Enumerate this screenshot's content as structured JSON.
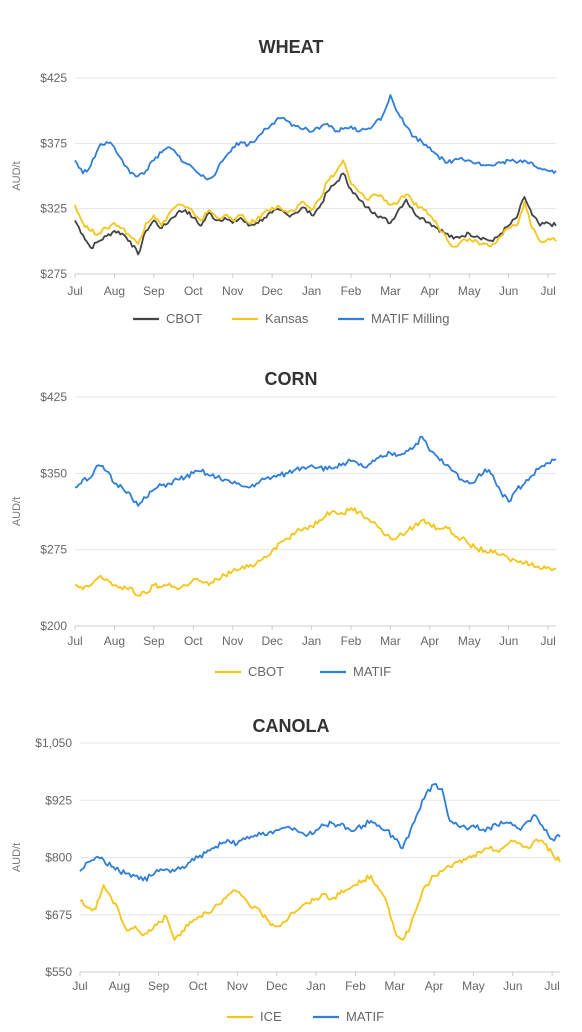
{
  "chart_data": [
    {
      "type": "line",
      "title": "WHEAT",
      "ylabel": "AUD/t",
      "ylim": [
        275,
        425
      ],
      "yticks": [
        "$425",
        "$375",
        "$325",
        "$275"
      ],
      "ytick_values": [
        425,
        375,
        325,
        275
      ],
      "x_tick_labels": [
        "Jul",
        "Aug",
        "Sep",
        "Oct",
        "Nov",
        "Dec",
        "Jan",
        "Feb",
        "Mar",
        "Apr",
        "May",
        "Jun",
        "Jul"
      ],
      "legend_position": "bottom",
      "grid": true,
      "x": [
        0,
        0.2,
        0.4,
        0.6,
        0.8,
        1.0,
        1.2,
        1.4,
        1.6,
        1.8,
        2.0,
        2.2,
        2.4,
        2.6,
        2.8,
        3.0,
        3.2,
        3.4,
        3.6,
        3.8,
        4.0,
        4.2,
        4.4,
        4.6,
        4.8,
        5.0,
        5.2,
        5.4,
        5.6,
        5.8,
        6.0,
        6.2,
        6.4,
        6.6,
        6.8,
        7.0,
        7.2,
        7.4,
        7.6,
        7.8,
        8.0,
        8.2,
        8.4,
        8.6,
        8.8,
        9.0,
        9.2,
        9.4,
        9.6,
        9.8,
        10.0,
        10.2,
        10.4,
        10.6,
        10.8,
        11.0,
        11.2,
        11.4,
        11.6,
        11.8,
        12.0,
        12.2
      ],
      "series": [
        {
          "name": "CBOT",
          "color": "#444444",
          "values": [
            316,
            305,
            295,
            300,
            304,
            308,
            306,
            300,
            290,
            308,
            316,
            310,
            316,
            322,
            324,
            318,
            312,
            322,
            316,
            318,
            314,
            318,
            312,
            314,
            318,
            322,
            324,
            320,
            322,
            326,
            320,
            326,
            338,
            344,
            352,
            340,
            332,
            326,
            322,
            318,
            314,
            324,
            332,
            322,
            318,
            314,
            310,
            306,
            302,
            304,
            306,
            304,
            302,
            300,
            306,
            312,
            318,
            334,
            320,
            312,
            314,
            312
          ]
        },
        {
          "name": "Kansas",
          "color": "#F5C518",
          "values": [
            328,
            314,
            308,
            306,
            310,
            314,
            310,
            304,
            298,
            314,
            320,
            312,
            322,
            328,
            326,
            322,
            316,
            324,
            318,
            320,
            316,
            320,
            314,
            316,
            322,
            326,
            326,
            322,
            324,
            330,
            324,
            332,
            346,
            352,
            362,
            344,
            338,
            332,
            336,
            334,
            328,
            330,
            336,
            328,
            326,
            320,
            312,
            304,
            296,
            300,
            302,
            300,
            298,
            298,
            304,
            310,
            312,
            330,
            310,
            300,
            302,
            300
          ]
        },
        {
          "name": "MATIF Milling",
          "color": "#2F7ED8",
          "values": [
            362,
            352,
            358,
            372,
            376,
            372,
            362,
            352,
            350,
            354,
            362,
            368,
            372,
            366,
            360,
            356,
            350,
            348,
            354,
            364,
            372,
            376,
            374,
            378,
            386,
            390,
            394,
            392,
            388,
            386,
            384,
            386,
            390,
            384,
            386,
            388,
            384,
            386,
            390,
            396,
            412,
            398,
            388,
            380,
            376,
            372,
            366,
            360,
            362,
            364,
            362,
            360,
            358,
            358,
            360,
            362,
            360,
            362,
            360,
            356,
            354,
            354
          ]
        }
      ]
    },
    {
      "type": "line",
      "title": "CORN",
      "ylabel": "AUD/t",
      "ylim": [
        200,
        425
      ],
      "yticks": [
        "$425",
        "$350",
        "$275",
        "$200"
      ],
      "ytick_values": [
        425,
        350,
        275,
        200
      ],
      "x_tick_labels": [
        "Jul",
        "Aug",
        "Sep",
        "Oct",
        "Nov",
        "Dec",
        "Jan",
        "Feb",
        "Mar",
        "Apr",
        "May",
        "Jun",
        "Jul"
      ],
      "legend_position": "bottom",
      "grid": true,
      "x": [
        0,
        0.2,
        0.4,
        0.6,
        0.8,
        1.0,
        1.2,
        1.4,
        1.6,
        1.8,
        2.0,
        2.2,
        2.4,
        2.6,
        2.8,
        3.0,
        3.2,
        3.4,
        3.6,
        3.8,
        4.0,
        4.2,
        4.4,
        4.6,
        4.8,
        5.0,
        5.2,
        5.4,
        5.6,
        5.8,
        6.0,
        6.2,
        6.4,
        6.6,
        6.8,
        7.0,
        7.2,
        7.4,
        7.6,
        7.8,
        8.0,
        8.2,
        8.4,
        8.6,
        8.8,
        9.0,
        9.2,
        9.4,
        9.6,
        9.8,
        10.0,
        10.2,
        10.4,
        10.6,
        10.8,
        11.0,
        11.2,
        11.4,
        11.6,
        11.8,
        12.0,
        12.2
      ],
      "series": [
        {
          "name": "CBOT",
          "color": "#F5C518",
          "values": [
            240,
            236,
            240,
            248,
            246,
            240,
            236,
            238,
            230,
            232,
            240,
            238,
            242,
            236,
            240,
            246,
            244,
            240,
            246,
            250,
            254,
            256,
            258,
            262,
            268,
            274,
            282,
            286,
            292,
            296,
            298,
            304,
            312,
            312,
            310,
            316,
            312,
            306,
            302,
            292,
            286,
            288,
            292,
            298,
            304,
            300,
            296,
            298,
            290,
            286,
            280,
            276,
            274,
            272,
            270,
            266,
            264,
            262,
            262,
            256,
            258,
            256
          ]
        },
        {
          "name": "MATIF",
          "color": "#2F7ED8",
          "values": [
            336,
            344,
            346,
            358,
            352,
            340,
            336,
            330,
            318,
            326,
            334,
            338,
            340,
            344,
            346,
            350,
            352,
            348,
            346,
            344,
            340,
            338,
            336,
            340,
            344,
            346,
            348,
            350,
            354,
            356,
            358,
            356,
            354,
            356,
            360,
            362,
            358,
            356,
            362,
            366,
            370,
            368,
            372,
            376,
            386,
            372,
            366,
            358,
            352,
            344,
            340,
            346,
            354,
            348,
            332,
            322,
            334,
            340,
            348,
            356,
            360,
            364
          ]
        }
      ]
    },
    {
      "type": "line",
      "title": "CANOLA",
      "ylabel": "AUD/t",
      "ylim": [
        550,
        1050
      ],
      "yticks": [
        "$1,050",
        "$925",
        "$800",
        "$675",
        "$550"
      ],
      "ytick_values": [
        1050,
        925,
        800,
        675,
        550
      ],
      "x_tick_labels": [
        "Jul",
        "Aug",
        "Sep",
        "Oct",
        "Nov",
        "Dec",
        "Jan",
        "Feb",
        "Mar",
        "Apr",
        "May",
        "Jun",
        "Jul"
      ],
      "legend_position": "bottom",
      "grid": true,
      "x": [
        0,
        0.2,
        0.4,
        0.6,
        0.8,
        1.0,
        1.2,
        1.4,
        1.6,
        1.8,
        2.0,
        2.2,
        2.4,
        2.6,
        2.8,
        3.0,
        3.2,
        3.4,
        3.6,
        3.8,
        4.0,
        4.2,
        4.4,
        4.6,
        4.8,
        5.0,
        5.2,
        5.4,
        5.6,
        5.8,
        6.0,
        6.2,
        6.4,
        6.6,
        6.8,
        7.0,
        7.2,
        7.4,
        7.6,
        7.8,
        8.0,
        8.2,
        8.4,
        8.6,
        8.8,
        9.0,
        9.2,
        9.4,
        9.6,
        9.8,
        10.0,
        10.2,
        10.4,
        10.6,
        10.8,
        11.0,
        11.2,
        11.4,
        11.6,
        11.8,
        12.0,
        12.2
      ],
      "series": [
        {
          "name": "ICE",
          "color": "#F5C518",
          "values": [
            705,
            690,
            688,
            740,
            710,
            680,
            640,
            650,
            630,
            640,
            660,
            670,
            620,
            640,
            660,
            670,
            680,
            690,
            700,
            720,
            725,
            710,
            690,
            680,
            660,
            650,
            660,
            680,
            690,
            700,
            710,
            720,
            710,
            720,
            730,
            740,
            750,
            760,
            730,
            700,
            640,
            620,
            650,
            700,
            740,
            760,
            770,
            780,
            790,
            795,
            805,
            810,
            820,
            815,
            825,
            835,
            830,
            820,
            840,
            830,
            810,
            790
          ]
        },
        {
          "name": "MATIF",
          "color": "#2F7ED8",
          "values": [
            770,
            790,
            800,
            795,
            780,
            770,
            765,
            760,
            750,
            760,
            770,
            775,
            770,
            780,
            790,
            800,
            810,
            820,
            830,
            835,
            830,
            840,
            845,
            850,
            855,
            860,
            865,
            860,
            855,
            850,
            860,
            870,
            875,
            870,
            865,
            860,
            870,
            880,
            870,
            860,
            840,
            820,
            860,
            900,
            940,
            960,
            950,
            880,
            870,
            865,
            870,
            860,
            865,
            870,
            875,
            870,
            860,
            880,
            890,
            860,
            840,
            845
          ]
        }
      ]
    }
  ]
}
